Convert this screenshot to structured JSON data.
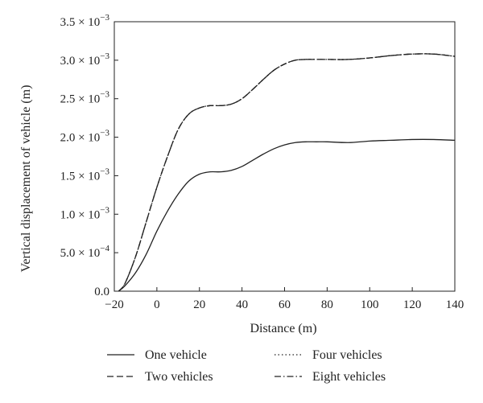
{
  "chart_data": {
    "type": "line",
    "title": "",
    "xlabel": "Distance (m)",
    "ylabel": "Vertical displacement of vehicle (m)",
    "xlim": [
      -20,
      140
    ],
    "ylim": [
      0,
      0.0035
    ],
    "grid": false,
    "legend_position": "bottom",
    "x_ticks": [
      -20,
      0,
      20,
      40,
      60,
      80,
      100,
      120,
      140
    ],
    "x_tick_labels": [
      "−20",
      "0",
      "20",
      "40",
      "60",
      "80",
      "100",
      "120",
      "140"
    ],
    "y_ticks": [
      {
        "value": 0.0,
        "mantissa": "0.0",
        "exp": ""
      },
      {
        "value": 0.0005,
        "mantissa": "5.0",
        "exp": "−4"
      },
      {
        "value": 0.001,
        "mantissa": "1.0",
        "exp": "−3"
      },
      {
        "value": 0.0015,
        "mantissa": "1.5",
        "exp": "−3"
      },
      {
        "value": 0.002,
        "mantissa": "2.0",
        "exp": "−3"
      },
      {
        "value": 0.0025,
        "mantissa": "2.5",
        "exp": "−3"
      },
      {
        "value": 0.003,
        "mantissa": "3.0",
        "exp": "−3"
      },
      {
        "value": 0.0035,
        "mantissa": "3.5",
        "exp": "−3"
      }
    ],
    "series": [
      {
        "name": "One vehicle",
        "dash": "solid",
        "x": [
          -18,
          -15,
          -10,
          -5,
          0,
          5,
          10,
          15,
          20,
          25,
          30,
          35,
          40,
          45,
          50,
          55,
          60,
          65,
          70,
          75,
          80,
          90,
          100,
          110,
          120,
          130,
          140
        ],
        "y": [
          0.0,
          7e-05,
          0.00024,
          0.00048,
          0.00078,
          0.00104,
          0.00126,
          0.00143,
          0.00152,
          0.00155,
          0.00155,
          0.00157,
          0.00162,
          0.0017,
          0.00178,
          0.00185,
          0.0019,
          0.00193,
          0.00194,
          0.00194,
          0.00194,
          0.00193,
          0.00195,
          0.00196,
          0.00197,
          0.00197,
          0.00196
        ]
      },
      {
        "name": "Two vehicles",
        "dash": "dashed",
        "x": [
          -18,
          -15,
          -10,
          -5,
          0,
          5,
          10,
          15,
          20,
          25,
          30,
          35,
          40,
          45,
          50,
          55,
          60,
          65,
          70,
          75,
          80,
          90,
          100,
          110,
          120,
          130,
          140
        ],
        "y": [
          0.0,
          0.0001,
          0.00045,
          0.0009,
          0.00135,
          0.00175,
          0.0021,
          0.0023,
          0.00238,
          0.00241,
          0.00241,
          0.00243,
          0.0025,
          0.00262,
          0.00275,
          0.00287,
          0.00295,
          0.003,
          0.00301,
          0.00301,
          0.00301,
          0.00301,
          0.00303,
          0.00306,
          0.00308,
          0.00308,
          0.00305
        ]
      },
      {
        "name": "Four vehicles",
        "dash": "dotted",
        "x": [
          -18,
          -15,
          -10,
          -5,
          0,
          5,
          10,
          15,
          20,
          25,
          30,
          35,
          40,
          45,
          50,
          55,
          60,
          65,
          70,
          75,
          80,
          90,
          100,
          110,
          120,
          130,
          140
        ],
        "y": [
          0.0,
          0.0001,
          0.00045,
          0.0009,
          0.00135,
          0.00175,
          0.0021,
          0.0023,
          0.00238,
          0.00241,
          0.00241,
          0.00243,
          0.0025,
          0.00262,
          0.00275,
          0.00287,
          0.00295,
          0.003,
          0.00301,
          0.00301,
          0.00301,
          0.00301,
          0.00303,
          0.00306,
          0.00308,
          0.00308,
          0.00305
        ]
      },
      {
        "name": "Eight vehicles",
        "dash": "dashdot",
        "x": [
          -18,
          -15,
          -10,
          -5,
          0,
          5,
          10,
          15,
          20,
          25,
          30,
          35,
          40,
          45,
          50,
          55,
          60,
          65,
          70,
          75,
          80,
          90,
          100,
          110,
          120,
          130,
          140
        ],
        "y": [
          0.0,
          0.0001,
          0.00045,
          0.0009,
          0.00135,
          0.00175,
          0.0021,
          0.0023,
          0.00238,
          0.00241,
          0.00241,
          0.00243,
          0.0025,
          0.00262,
          0.00275,
          0.00287,
          0.00295,
          0.003,
          0.00301,
          0.00301,
          0.00301,
          0.00301,
          0.00303,
          0.00306,
          0.00308,
          0.00308,
          0.00305
        ]
      }
    ]
  },
  "colors": {
    "line": "#222222",
    "axis": "#222222",
    "background": "#ffffff"
  }
}
